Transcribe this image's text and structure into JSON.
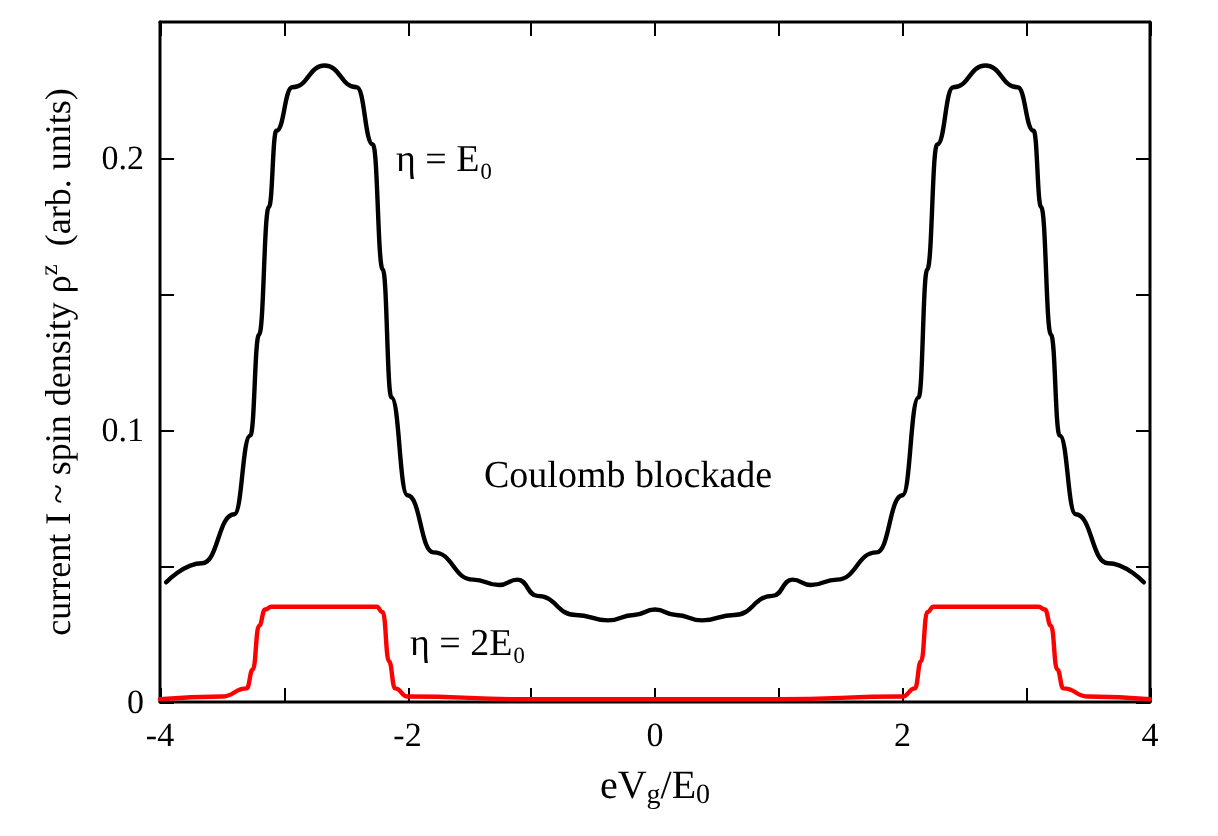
{
  "chart_data": {
    "type": "line",
    "xlabel": "eV$_{g}$/E$_{0}$",
    "ylabel": "current I ~ spin density ρ$^{z}$  (arb. units)",
    "xlim": [
      -4,
      4
    ],
    "xticks": [
      -4,
      {
        "value": -3,
        "label": null
      },
      -2,
      {
        "value": -1,
        "label": null
      },
      0,
      {
        "value": 1,
        "label": null
      },
      2,
      {
        "value": 3,
        "label": null
      },
      4
    ],
    "ylim": [
      0,
      0.25
    ],
    "yticks": [
      0,
      {
        "value": 0.05,
        "label": null
      },
      0.1,
      {
        "value": 0.15,
        "label": null
      },
      0.2
    ],
    "grid": false,
    "marker": "none",
    "line_style": "solid",
    "annotations": [
      "η = E₀",
      "Coulomb blockade",
      "η = 2E₀"
    ],
    "series": [
      {
        "color": "#000000",
        "x": [
          -3.95,
          -3.66,
          -3.4,
          -3.27,
          -3.2,
          -3.12,
          -3.06,
          -2.93,
          -2.67,
          -2.41,
          -2.28,
          -2.2,
          -2.13,
          -2.0,
          -1.79,
          -1.47,
          -1.26,
          -1.11,
          -0.95,
          -0.64,
          -0.38,
          -0.17,
          0,
          0.17,
          0.38,
          0.64,
          0.95,
          1.11,
          1.26,
          1.47,
          1.79,
          2.0,
          2.13,
          2.2,
          2.28,
          2.41,
          2.67,
          2.93,
          3.06,
          3.12,
          3.2,
          3.27,
          3.4,
          3.66,
          3.95
        ],
        "values": [
          0.044,
          0.051,
          0.069,
          0.098,
          0.135,
          0.182,
          0.21,
          0.226,
          0.234,
          0.226,
          0.205,
          0.159,
          0.112,
          0.076,
          0.055,
          0.045,
          0.043,
          0.045,
          0.039,
          0.032,
          0.03,
          0.032,
          0.034,
          0.032,
          0.03,
          0.032,
          0.039,
          0.045,
          0.043,
          0.045,
          0.055,
          0.076,
          0.112,
          0.159,
          0.205,
          0.226,
          0.234,
          0.226,
          0.21,
          0.182,
          0.135,
          0.098,
          0.069,
          0.051,
          0.044
        ]
      },
      {
        "color": "#ff0000",
        "x": [
          -4,
          -3.5,
          -3.3,
          -3.25,
          -3.2,
          -3.15,
          -3.1,
          -2.5,
          -2.25,
          -2.2,
          -2.15,
          -2.1,
          -2.0,
          -1,
          0,
          1,
          2.0,
          2.1,
          2.15,
          2.2,
          2.25,
          2.5,
          3.1,
          3.15,
          3.2,
          3.25,
          3.3,
          3.5,
          4
        ],
        "values": [
          0.001,
          0.002,
          0.005,
          0.012,
          0.028,
          0.034,
          0.035,
          0.035,
          0.035,
          0.033,
          0.015,
          0.005,
          0.002,
          0.001,
          0.001,
          0.001,
          0.002,
          0.005,
          0.015,
          0.033,
          0.035,
          0.035,
          0.035,
          0.034,
          0.028,
          0.012,
          0.005,
          0.002,
          0.001
        ]
      }
    ]
  }
}
